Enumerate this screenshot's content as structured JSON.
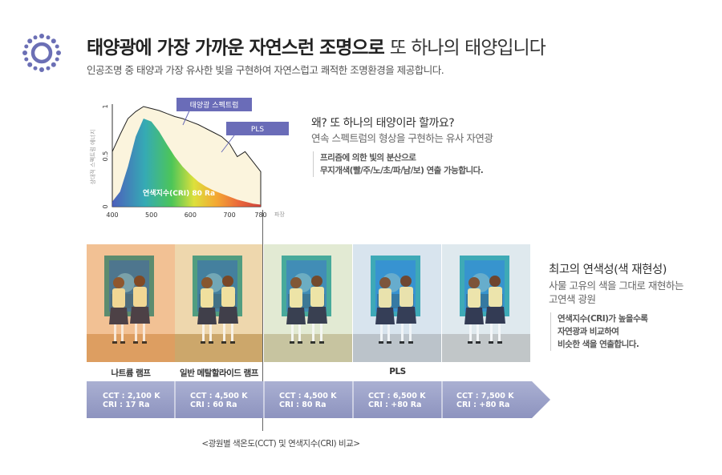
{
  "header": {
    "icon": "sun-icon",
    "title_bold": "태양광에 가장 가까운 자연스런 조명으로",
    "title_light": "또 하나의 태양입니다",
    "subtitle": "인공조명 중 태양과 가장 유사한 빛을 구현하여 자연스럽고 쾌적한 조명환경을 제공합니다."
  },
  "chart_data": {
    "type": "area",
    "ylabel": "상대적 스펙트럼 에너지",
    "xlabel": "파장",
    "x_ticks": [
      "400",
      "500",
      "600",
      "700",
      "780"
    ],
    "y_ticks": [
      "0",
      "0.5",
      "1"
    ],
    "xlim": [
      400,
      780
    ],
    "ylim": [
      0,
      1
    ],
    "series": [
      {
        "name": "태양광 스펙트럼",
        "x": [
          400,
          420,
          440,
          460,
          480,
          500,
          520,
          540,
          560,
          580,
          600,
          620,
          640,
          660,
          680,
          700,
          720,
          740,
          760,
          780
        ],
        "values": [
          0.55,
          0.72,
          0.88,
          0.95,
          1.0,
          0.98,
          0.96,
          0.93,
          0.9,
          0.88,
          0.85,
          0.82,
          0.78,
          0.74,
          0.7,
          0.63,
          0.5,
          0.55,
          0.45,
          0.35
        ]
      },
      {
        "name": "PLS",
        "x": [
          400,
          420,
          440,
          460,
          480,
          500,
          520,
          540,
          560,
          580,
          600,
          620,
          640,
          660,
          680,
          700,
          720,
          740,
          760,
          780
        ],
        "values": [
          0.05,
          0.15,
          0.4,
          0.7,
          0.88,
          0.85,
          0.75,
          0.62,
          0.5,
          0.4,
          0.32,
          0.25,
          0.2,
          0.16,
          0.13,
          0.1,
          0.07,
          0.05,
          0.03,
          0.02
        ]
      }
    ],
    "annotation": "연색지수(CRI) 80 Ra"
  },
  "right_top": {
    "question": "왜? 또 하나의 태양이라 할까요?",
    "answer": "연속 스펙트럼의 형상을 구현하는 유사 자연광",
    "note_1": "프리즘에 의한 빛의 분산으로",
    "note_2": "무지개색(빨/주/노/초/파/남/보) 연출 가능합니다."
  },
  "right_bottom": {
    "title": "최고의 연색성(색 재현성)",
    "sub_1": "사물 고유의 색을 그대로 재현하는",
    "sub_2": "고연색 광원",
    "note_1": "연색지수(CRI)가 높을수록",
    "note_2": "자연광과 비교하여",
    "note_3": "비슷한 색을 연출합니다."
  },
  "lamps": {
    "sodium": "나트륨 램프",
    "metal_halide": "일반 메탈할라이드 램프",
    "pls": "PLS"
  },
  "specs": [
    {
      "cct": "CCT : 2,100 K",
      "cri": "CRI : 17 Ra"
    },
    {
      "cct": "CCT : 4,500 K",
      "cri": "CRI : 60 Ra"
    },
    {
      "cct": "CCT : 4,500 K",
      "cri": "CRI : 80 Ra"
    },
    {
      "cct": "CCT : 6,500 K",
      "cri": "CRI : +80 Ra"
    },
    {
      "cct": "CCT : 7,500 K",
      "cri": "CRI : +80 Ra"
    }
  ],
  "caption": "<광원별 색온도(CCT) 및 연색지수(CRI) 비교>",
  "colors": {
    "sun": "#6b6fb5",
    "band": "#9aa0c8",
    "callout": "#6a6cb8"
  }
}
